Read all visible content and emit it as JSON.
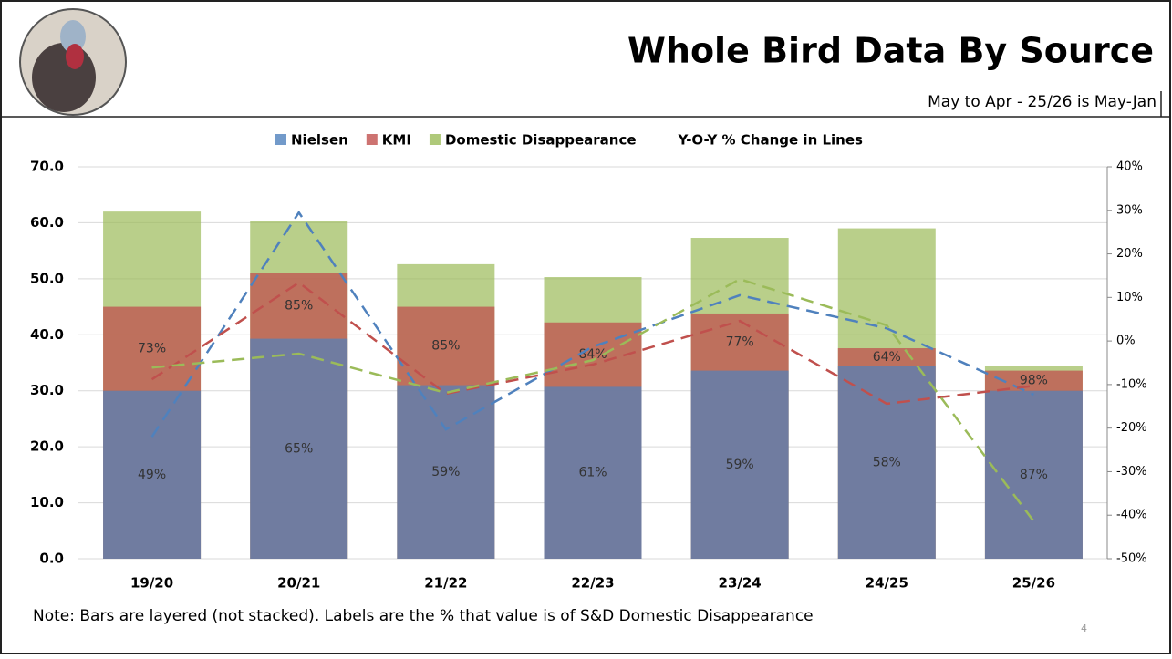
{
  "chart_data": {
    "type": "layered-bar",
    "title": "Whole Bird Data By Source",
    "subtitle": "May to Apr - 25/26 is May-Jan",
    "line_note": "Y-O-Y % Change in Lines",
    "note": "Note: Bars are layered (not stacked). Labels are the % that value is of S&D Domestic Disappearance",
    "page_number": "4",
    "categories": [
      "19/20",
      "20/21",
      "21/22",
      "22/23",
      "23/24",
      "24/25",
      "25/26"
    ],
    "series": [
      {
        "name": "Domestic Disappearance",
        "color": "#9bbb59",
        "values": [
          62.0,
          60.3,
          52.6,
          50.3,
          57.3,
          59.0,
          34.4
        ]
      },
      {
        "name": "KMI",
        "color": "#c0504d",
        "values": [
          45.0,
          51.1,
          45.0,
          42.2,
          43.8,
          37.6,
          33.6
        ],
        "labels": [
          "73%",
          "85%",
          "85%",
          "84%",
          "77%",
          "64%",
          "98%"
        ]
      },
      {
        "name": "Nielsen",
        "color": "#4f81bd",
        "values": [
          30.0,
          39.3,
          31.0,
          30.7,
          33.6,
          34.4,
          30.0
        ],
        "labels": [
          "49%",
          "65%",
          "59%",
          "61%",
          "59%",
          "58%",
          "87%"
        ]
      }
    ],
    "line_series": [
      {
        "color": "#4f81bd",
        "axis": "y2",
        "values": [
          -22,
          29.5,
          -20.3,
          -1.3,
          10.5,
          2.9,
          -12.3
        ]
      },
      {
        "color": "#c0504d",
        "axis": "y2",
        "values": [
          -8.8,
          13.4,
          -12.1,
          -5.4,
          4.6,
          -14.4,
          -10.3
        ]
      },
      {
        "color": "#9bbb59",
        "axis": "y2",
        "values": [
          -6.1,
          -2.9,
          -11.9,
          -4.4,
          14.2,
          3.6,
          -41.4
        ]
      }
    ],
    "ylim": [
      0,
      70
    ],
    "yticks": [
      {
        "value": 0,
        "label": "0.0"
      },
      {
        "value": 10,
        "label": "10.0"
      },
      {
        "value": 20,
        "label": "20.0"
      },
      {
        "value": 30,
        "label": "30.0"
      },
      {
        "value": 40,
        "label": "40.0"
      },
      {
        "value": 50,
        "label": "50.0"
      },
      {
        "value": 60,
        "label": "60.0"
      },
      {
        "value": 70,
        "label": "70.0"
      }
    ],
    "y2lim": [
      -50,
      40
    ],
    "y2ticks": [
      {
        "value": -50,
        "label": "-50%"
      },
      {
        "value": -40,
        "label": "-40%"
      },
      {
        "value": -30,
        "label": "-30%"
      },
      {
        "value": -20,
        "label": "-20%"
      },
      {
        "value": -10,
        "label": "-10%"
      },
      {
        "value": 0,
        "label": "0%"
      },
      {
        "value": 10,
        "label": "10%"
      },
      {
        "value": 20,
        "label": "20%"
      },
      {
        "value": 30,
        "label": "30%"
      },
      {
        "value": 40,
        "label": "40%"
      }
    ]
  }
}
